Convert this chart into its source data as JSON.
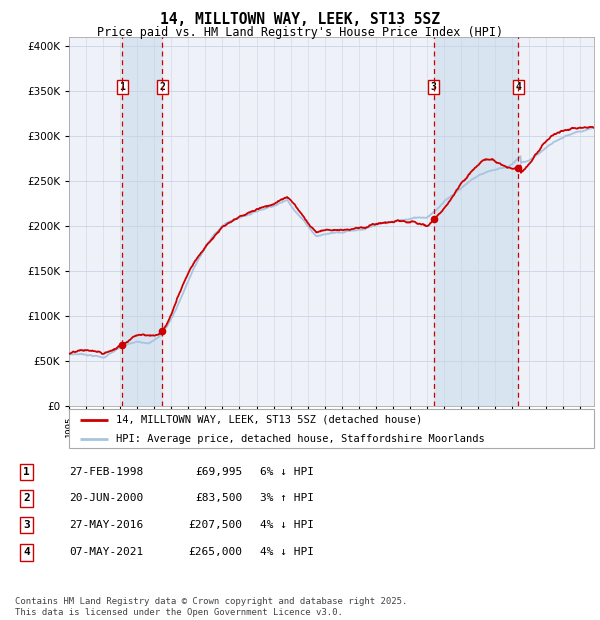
{
  "title": "14, MILLTOWN WAY, LEEK, ST13 5SZ",
  "subtitle": "Price paid vs. HM Land Registry's House Price Index (HPI)",
  "legend_line1": "14, MILLTOWN WAY, LEEK, ST13 5SZ (detached house)",
  "legend_line2": "HPI: Average price, detached house, Staffordshire Moorlands",
  "transactions": [
    {
      "num": 1,
      "date": "27-FEB-1998",
      "price": 69995,
      "pct": "6%",
      "dir": "↓",
      "year": 1998.12
    },
    {
      "num": 2,
      "date": "20-JUN-2000",
      "price": 83500,
      "pct": "3%",
      "dir": "↑",
      "year": 2000.47
    },
    {
      "num": 3,
      "date": "27-MAY-2016",
      "price": 207500,
      "pct": "4%",
      "dir": "↓",
      "year": 2016.4
    },
    {
      "num": 4,
      "date": "07-MAY-2021",
      "price": 265000,
      "pct": "4%",
      "dir": "↓",
      "year": 2021.35
    }
  ],
  "hpi_color": "#a8c4e0",
  "price_color": "#cc0000",
  "background_color": "#eef2f8",
  "grid_color": "#c8d4e4",
  "shade_color": "#d8e4f0",
  "footer": "Contains HM Land Registry data © Crown copyright and database right 2025.\nThis data is licensed under the Open Government Licence v3.0.",
  "ylim": [
    0,
    410000
  ],
  "yticks": [
    0,
    50000,
    100000,
    150000,
    200000,
    250000,
    300000,
    350000,
    400000
  ],
  "year_start": 1995,
  "year_end": 2025.8
}
